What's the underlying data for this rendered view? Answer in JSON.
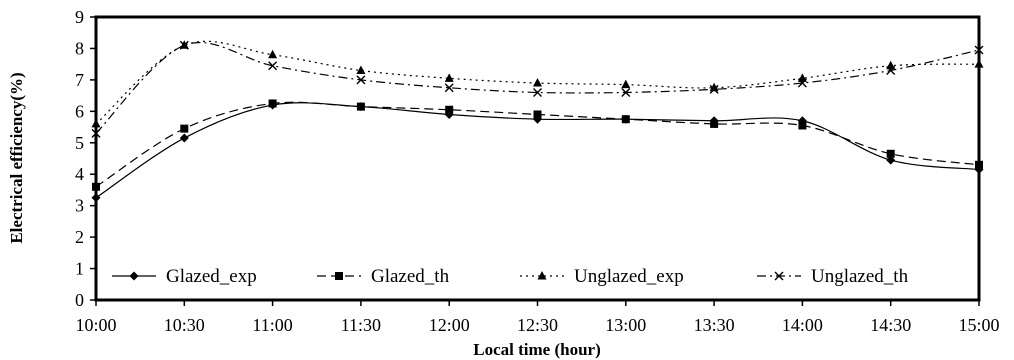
{
  "chart_data": {
    "type": "line",
    "xlabel": "Local time (hour)",
    "ylabel": "Electrical efficiency(%)",
    "ylim": [
      0,
      9
    ],
    "yticks": [
      "0",
      "1",
      "2",
      "3",
      "4",
      "5",
      "6",
      "7",
      "8",
      "9"
    ],
    "categories": [
      "10:00",
      "10:30",
      "11:00",
      "11:30",
      "12:00",
      "12:30",
      "13:00",
      "13:30",
      "14:00",
      "14:30",
      "15:00"
    ],
    "grid": false,
    "legend_position": "bottom",
    "series": [
      {
        "name": "Glazed_exp",
        "marker": "diamond",
        "dash": "solid",
        "color": "#000000",
        "values": [
          3.25,
          5.15,
          6.2,
          6.15,
          5.9,
          5.75,
          5.75,
          5.7,
          5.7,
          4.45,
          4.15
        ]
      },
      {
        "name": "Glazed_th",
        "marker": "square",
        "dash": "dashed",
        "color": "#000000",
        "values": [
          3.6,
          5.45,
          6.25,
          6.15,
          6.05,
          5.9,
          5.75,
          5.6,
          5.55,
          4.65,
          4.3
        ]
      },
      {
        "name": "Unglazed_exp",
        "marker": "triangle",
        "dash": "dotted",
        "color": "#000000",
        "values": [
          5.6,
          8.1,
          7.8,
          7.3,
          7.05,
          6.9,
          6.85,
          6.75,
          7.05,
          7.45,
          7.5
        ]
      },
      {
        "name": "Unglazed_th",
        "marker": "x",
        "dash": "dashdot",
        "color": "#000000",
        "values": [
          5.3,
          8.1,
          7.45,
          7.0,
          6.75,
          6.6,
          6.6,
          6.7,
          6.9,
          7.3,
          7.95
        ]
      }
    ]
  }
}
